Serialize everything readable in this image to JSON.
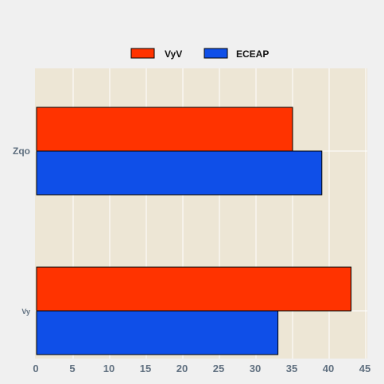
{
  "chart_data": {
    "type": "bar",
    "orientation": "horizontal",
    "categories": [
      "Zqo",
      "Vy"
    ],
    "series": [
      {
        "name": "VyV",
        "color": "#ff3300",
        "values": [
          35,
          43
        ]
      },
      {
        "name": "ECEAP",
        "color": "#0f4fe8",
        "values": [
          39,
          33
        ]
      }
    ],
    "xlim": [
      0,
      45
    ],
    "x_ticks": [
      0,
      5,
      10,
      15,
      20,
      25,
      30,
      35,
      40,
      45
    ],
    "grid": true,
    "legend_position": "top-center",
    "colors": {
      "plot_background": "#ede6d5",
      "page_background": "#f0f0f0",
      "grid": "#ffffff",
      "tick_label": "#5f6f7f"
    }
  }
}
